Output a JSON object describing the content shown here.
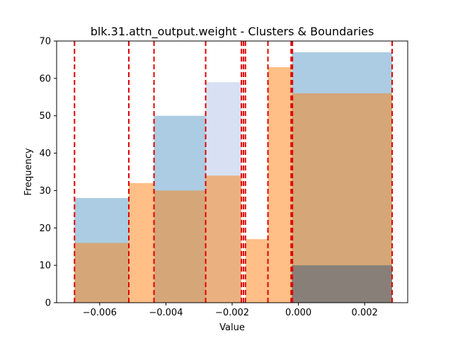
{
  "chart_data": {
    "type": "bar",
    "title": "blk.31.attn_output.weight - Clusters & Boundaries",
    "xlabel": "Value",
    "ylabel": "Frequency",
    "xlim": [
      -0.0073,
      0.0033
    ],
    "ylim": [
      0,
      70
    ],
    "x_ticks": [
      -0.006,
      -0.004,
      -0.002,
      0.0,
      0.002
    ],
    "x_tick_labels": [
      "−0.006",
      "−0.004",
      "−0.002",
      "0.000",
      "0.002"
    ],
    "y_ticks": [
      0,
      10,
      20,
      30,
      40,
      50,
      60,
      70
    ],
    "y_tick_labels": [
      "0",
      "10",
      "20",
      "30",
      "40",
      "50",
      "60",
      "70"
    ],
    "grid": false,
    "alpha": 0.5,
    "series": [
      {
        "color": "#5799c6",
        "bins": [
          {
            "x0": -0.00676,
            "x1": -0.00512,
            "value": 28
          },
          {
            "x0": -0.00436,
            "x1": -0.0028,
            "value": 50
          },
          {
            "x0": -0.0002,
            "x1": 0.00283,
            "value": 67
          }
        ]
      },
      {
        "color": "#b0c4e8",
        "bins": [
          {
            "x0": -0.0028,
            "x1": -0.00172,
            "value": 59
          }
        ]
      },
      {
        "color": "#ff7f0e",
        "bins": [
          {
            "x0": -0.00676,
            "x1": -0.00512,
            "value": 16
          },
          {
            "x0": -0.00512,
            "x1": -0.00436,
            "value": 32
          },
          {
            "x0": -0.00436,
            "x1": -0.0028,
            "value": 30
          },
          {
            "x0": -0.0028,
            "x1": -0.00172,
            "value": 34
          },
          {
            "x0": -0.0016,
            "x1": -0.00092,
            "value": 17
          },
          {
            "x0": -0.00092,
            "x1": -0.0002,
            "value": 63
          },
          {
            "x0": -0.0002,
            "x1": 0.00283,
            "value": 56
          }
        ]
      },
      {
        "color": "#3b5a78",
        "bins": [
          {
            "x0": -0.0002,
            "x1": 0.00283,
            "value": 10
          }
        ]
      }
    ],
    "boundaries": [
      -0.00676,
      -0.00512,
      -0.00436,
      -0.0028,
      -0.00172,
      -0.00166,
      -0.0016,
      -0.00092,
      -0.00022,
      -0.00018,
      0.00283
    ],
    "boundary_color": "#e00000"
  }
}
